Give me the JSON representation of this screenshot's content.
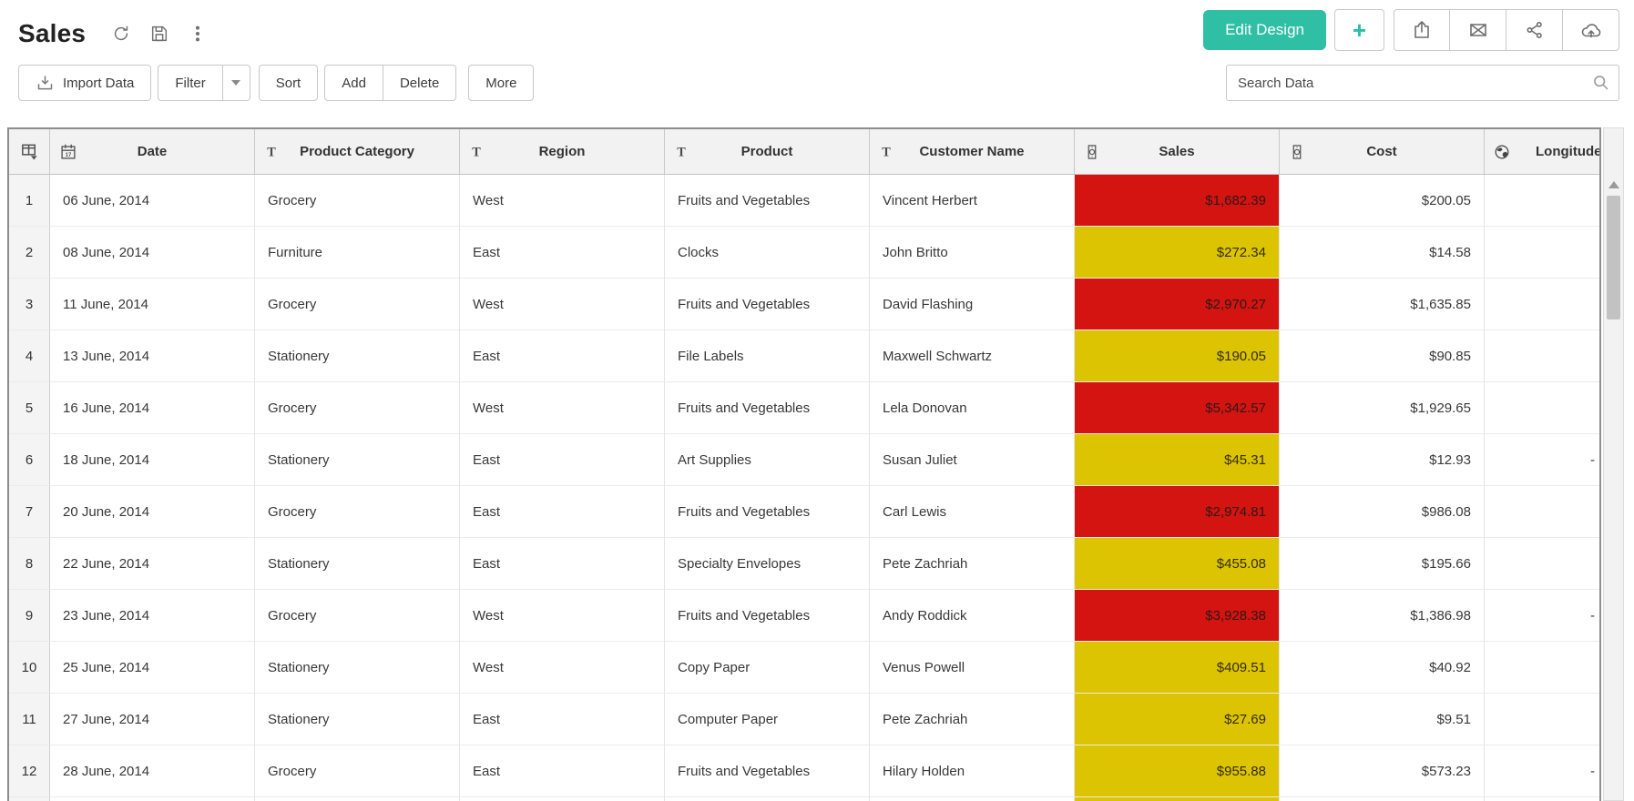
{
  "colors": {
    "accent": "#2ebfa5",
    "sales_red": "#d41411",
    "sales_yellow": "#ddc402"
  },
  "titlebar": {
    "title": "Sales",
    "icons": [
      "refresh-icon",
      "save-icon",
      "kebab-icon"
    ]
  },
  "actions": {
    "edit_design_label": "Edit Design",
    "plus_label": "+",
    "icon_buttons": [
      "export-icon",
      "mail-icon",
      "share-icon",
      "cloud-upload-icon"
    ]
  },
  "toolbar": {
    "import_label": "Import Data",
    "import_icon": "import-icon",
    "filter_label": "Filter",
    "sort_label": "Sort",
    "add_label": "Add",
    "delete_label": "Delete",
    "more_label": "More",
    "search_placeholder": "Search Data",
    "search_icon": "search-icon"
  },
  "table": {
    "columns": [
      {
        "id": "rownum",
        "label": "",
        "icon": "grid-icon"
      },
      {
        "id": "date",
        "label": "Date",
        "icon": "calendar-icon"
      },
      {
        "id": "category",
        "label": "Product Category",
        "icon": "text-icon"
      },
      {
        "id": "region",
        "label": "Region",
        "icon": "text-icon"
      },
      {
        "id": "product",
        "label": "Product",
        "icon": "text-icon"
      },
      {
        "id": "customer",
        "label": "Customer Name",
        "icon": "text-icon"
      },
      {
        "id": "sales",
        "label": "Sales",
        "icon": "currency-icon"
      },
      {
        "id": "cost",
        "label": "Cost",
        "icon": "currency-icon"
      },
      {
        "id": "longitude",
        "label": "Longitude",
        "icon": "globe-icon"
      }
    ],
    "rows": [
      {
        "num": "1",
        "date": "06 June, 2014",
        "category": "Grocery",
        "region": "West",
        "product": "Fruits and Vegetables",
        "customer": "Vincent Herbert",
        "sales": "$1,682.39",
        "sales_color": "red",
        "cost": "$200.05",
        "longitude": ""
      },
      {
        "num": "2",
        "date": "08 June, 2014",
        "category": "Furniture",
        "region": "East",
        "product": "Clocks",
        "customer": "John Britto",
        "sales": "$272.34",
        "sales_color": "yellow",
        "cost": "$14.58",
        "longitude": ""
      },
      {
        "num": "3",
        "date": "11 June, 2014",
        "category": "Grocery",
        "region": "West",
        "product": "Fruits and Vegetables",
        "customer": "David Flashing",
        "sales": "$2,970.27",
        "sales_color": "red",
        "cost": "$1,635.85",
        "longitude": ""
      },
      {
        "num": "4",
        "date": "13 June, 2014",
        "category": "Stationery",
        "region": "East",
        "product": "File Labels",
        "customer": "Maxwell Schwartz",
        "sales": "$190.05",
        "sales_color": "yellow",
        "cost": "$90.85",
        "longitude": ""
      },
      {
        "num": "5",
        "date": "16 June, 2014",
        "category": "Grocery",
        "region": "West",
        "product": "Fruits and Vegetables",
        "customer": "Lela Donovan",
        "sales": "$5,342.57",
        "sales_color": "red",
        "cost": "$1,929.65",
        "longitude": ""
      },
      {
        "num": "6",
        "date": "18 June, 2014",
        "category": "Stationery",
        "region": "East",
        "product": "Art Supplies",
        "customer": "Susan Juliet",
        "sales": "$45.31",
        "sales_color": "yellow",
        "cost": "$12.93",
        "longitude": "-"
      },
      {
        "num": "7",
        "date": "20 June, 2014",
        "category": "Grocery",
        "region": "East",
        "product": "Fruits and Vegetables",
        "customer": "Carl Lewis",
        "sales": "$2,974.81",
        "sales_color": "red",
        "cost": "$986.08",
        "longitude": ""
      },
      {
        "num": "8",
        "date": "22 June, 2014",
        "category": "Stationery",
        "region": "East",
        "product": "Specialty Envelopes",
        "customer": "Pete Zachriah",
        "sales": "$455.08",
        "sales_color": "yellow",
        "cost": "$195.66",
        "longitude": ""
      },
      {
        "num": "9",
        "date": "23 June, 2014",
        "category": "Grocery",
        "region": "West",
        "product": "Fruits and Vegetables",
        "customer": "Andy Roddick",
        "sales": "$3,928.38",
        "sales_color": "red",
        "cost": "$1,386.98",
        "longitude": "-"
      },
      {
        "num": "10",
        "date": "25 June, 2014",
        "category": "Stationery",
        "region": "West",
        "product": "Copy Paper",
        "customer": "Venus Powell",
        "sales": "$409.51",
        "sales_color": "yellow",
        "cost": "$40.92",
        "longitude": ""
      },
      {
        "num": "11",
        "date": "27 June, 2014",
        "category": "Stationery",
        "region": "East",
        "product": "Computer Paper",
        "customer": "Pete Zachriah",
        "sales": "$27.69",
        "sales_color": "yellow",
        "cost": "$9.51",
        "longitude": ""
      },
      {
        "num": "12",
        "date": "28 June, 2014",
        "category": "Grocery",
        "region": "East",
        "product": "Fruits and Vegetables",
        "customer": "Hilary Holden",
        "sales": "$955.88",
        "sales_color": "yellow",
        "cost": "$573.23",
        "longitude": "-"
      }
    ],
    "partial_row": {
      "sales_color": "yellow"
    }
  }
}
